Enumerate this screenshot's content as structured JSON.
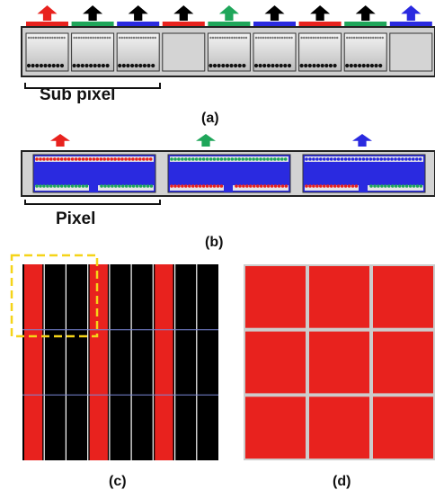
{
  "labels": {
    "sub_pixel": "Sub pixel",
    "pixel": "Pixel",
    "panel_a": "(a)",
    "panel_b": "(b)",
    "panel_c": "(c)",
    "panel_d": "(d)"
  },
  "colors": {
    "red": "#e8221e",
    "green": "#1fa65a",
    "blue": "#2a2ae0",
    "black": "#000000",
    "gray": "#c8c8c8",
    "dashed_box": "#f5d419"
  },
  "panel_a": {
    "arrows": [
      "red",
      "black",
      "black",
      "black",
      "green",
      "black",
      "black",
      "black",
      "blue"
    ],
    "color_bars": [
      "red",
      "green",
      "blue",
      "red",
      "green",
      "blue",
      "red",
      "green",
      "blue"
    ],
    "cells_dark_bottom": [
      true,
      true,
      true,
      false,
      true,
      true,
      true,
      true,
      false
    ]
  },
  "panel_b": {
    "arrows": [
      "red",
      "green",
      "blue"
    ],
    "pixels": [
      {
        "top_dots": "red",
        "bottom_left_dots": "green",
        "bottom_right_dots": "green"
      },
      {
        "top_dots": "green",
        "bottom_left_dots": "red",
        "bottom_right_dots": "red"
      },
      {
        "top_dots": "blue",
        "bottom_left_dots": "red",
        "bottom_right_dots": "green"
      }
    ]
  },
  "panel_c": {
    "column_fills": [
      "red",
      "black",
      "black",
      "red",
      "black",
      "black",
      "red",
      "black",
      "black"
    ],
    "rows": 3
  },
  "panel_d": {
    "fill": "red",
    "rows": 3,
    "columns": 3
  }
}
